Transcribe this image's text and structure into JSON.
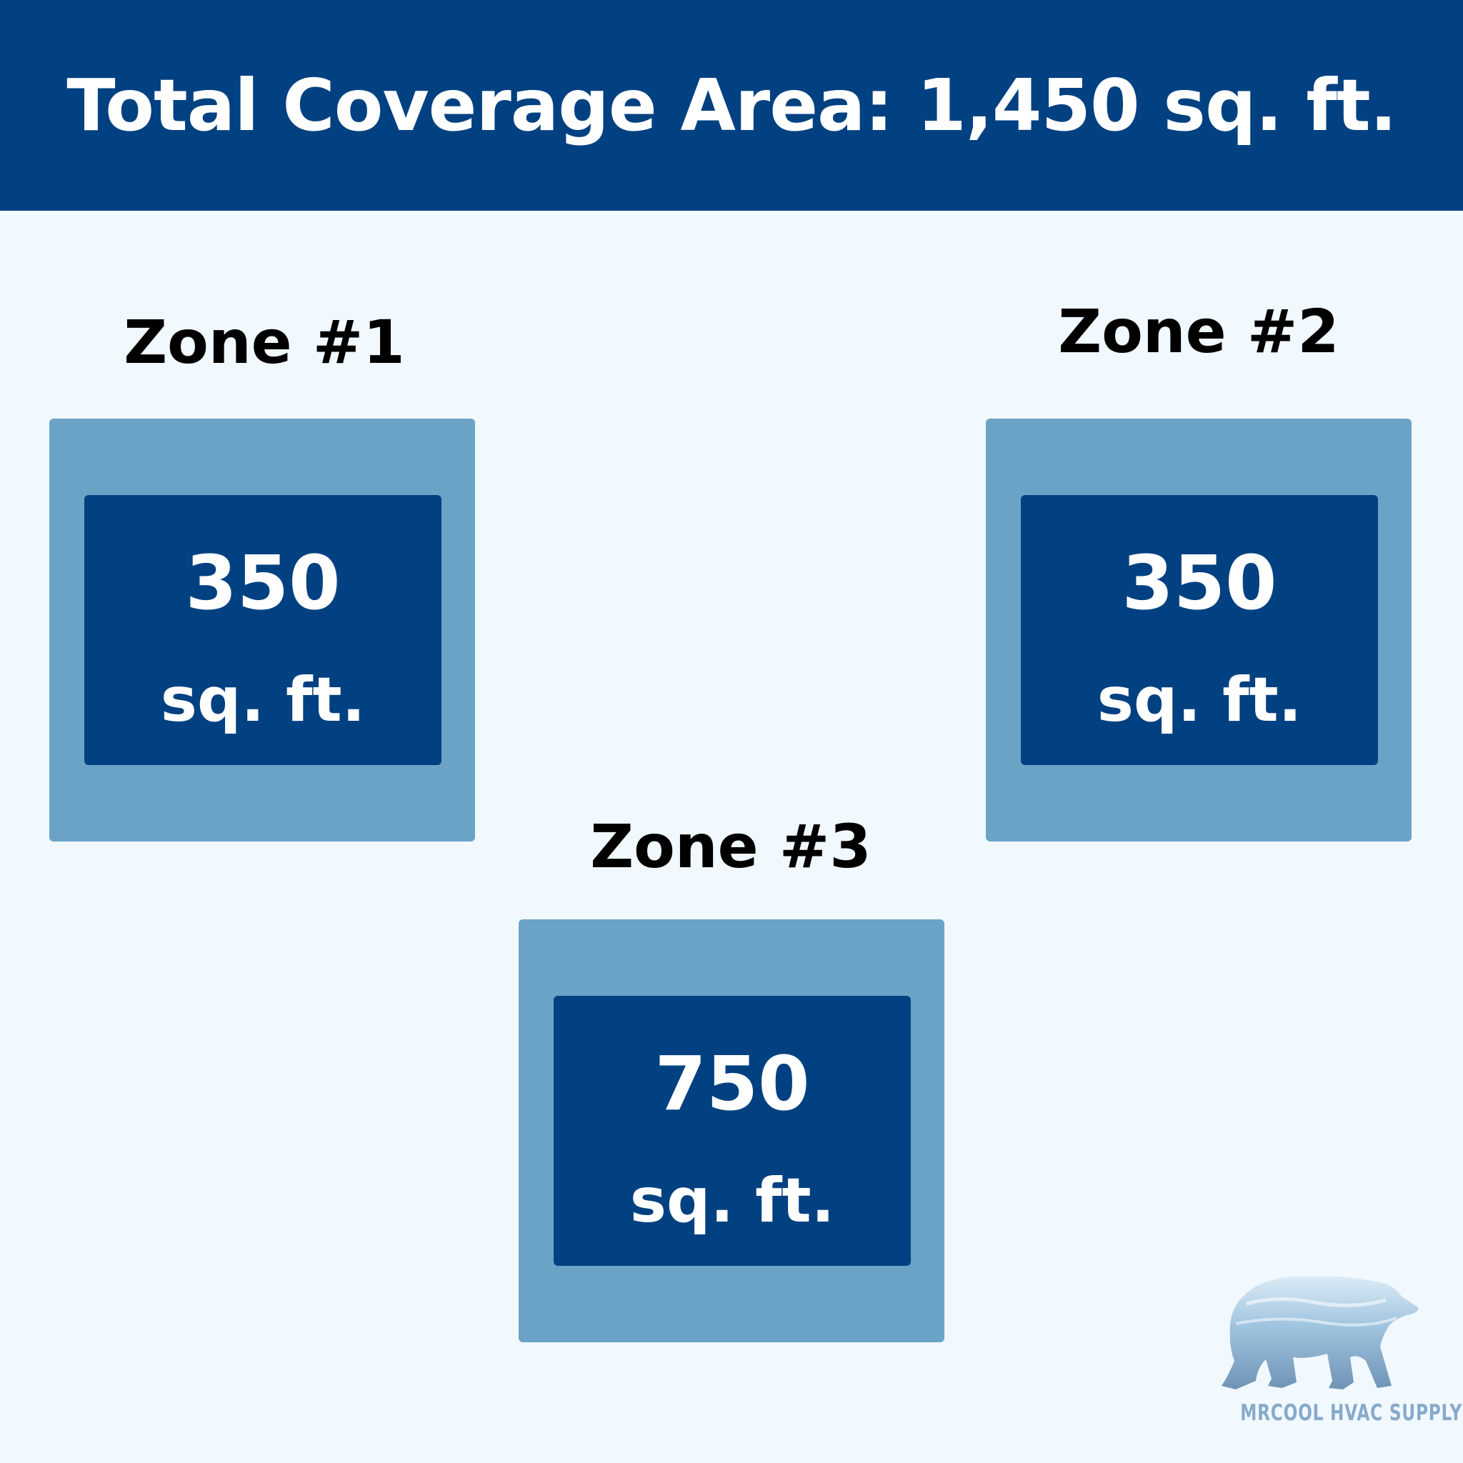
{
  "header": {
    "title": "Total Coverage Area: 1,450 sq. ft."
  },
  "zones": [
    {
      "label": "Zone #1",
      "value": "350",
      "unit": "sq. ft."
    },
    {
      "label": "Zone #2",
      "value": "350",
      "unit": "sq. ft."
    },
    {
      "label": "Zone #3",
      "value": "750",
      "unit": "sq. ft."
    }
  ],
  "logo": {
    "text": "MRCOOL HVAC SUPPLY",
    "icon": "polar-bear-icon"
  },
  "colors": {
    "header": "#024181",
    "background": "#f1f8fe",
    "outer_box": "#6ba3c7",
    "inner_box": "#024181"
  }
}
